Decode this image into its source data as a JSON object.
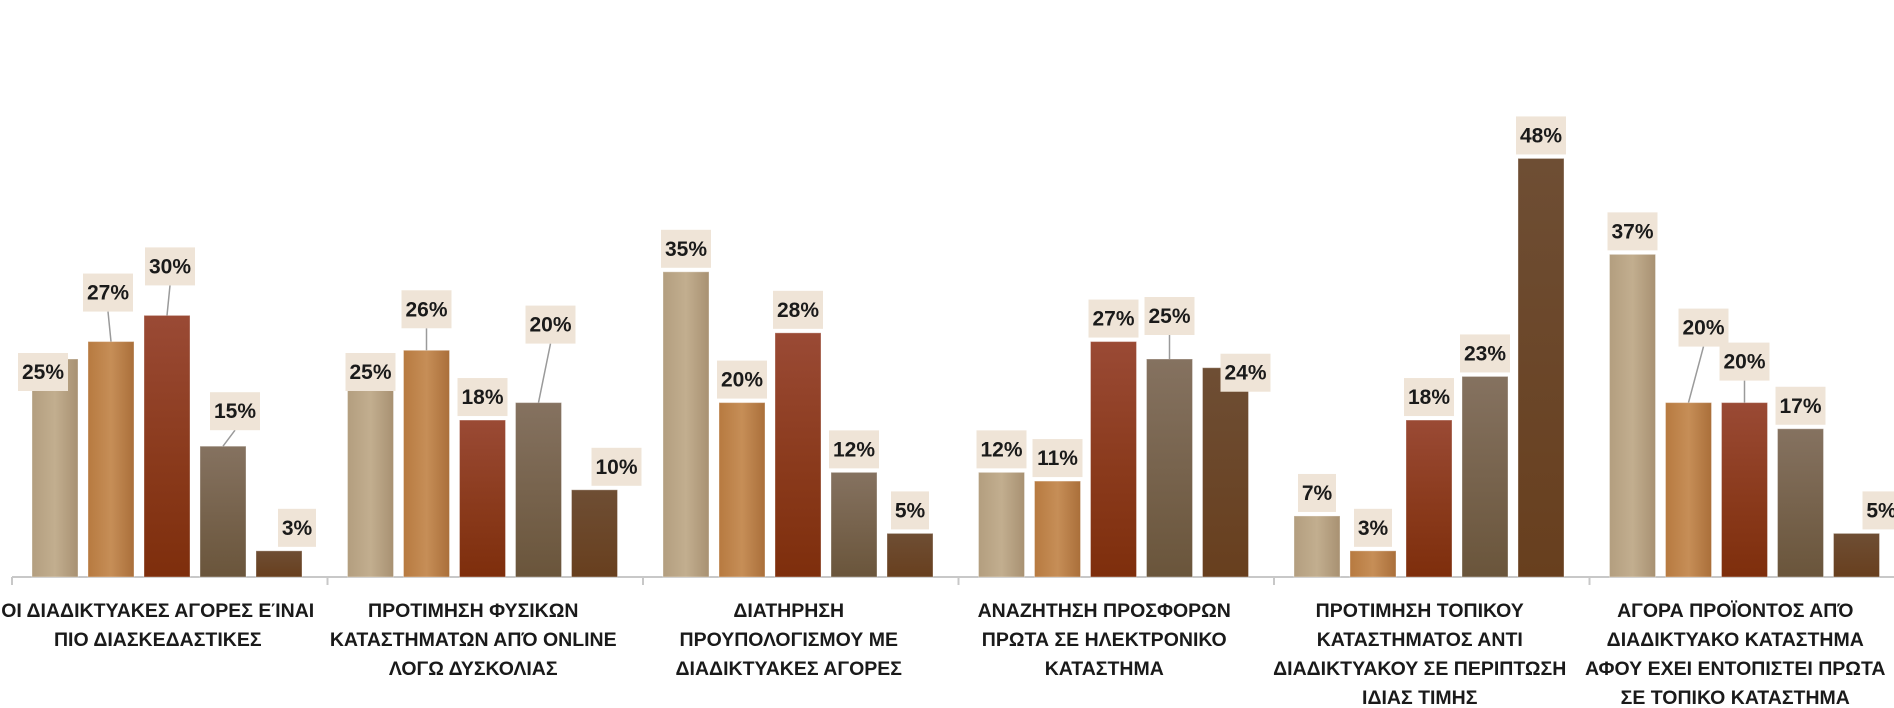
{
  "chart_data": {
    "type": "bar",
    "title": "",
    "xlabel": "",
    "ylabel": "",
    "legend": "none",
    "grid": false,
    "ylim": [
      0,
      55
    ],
    "categories": [
      [
        "ΟΙ ΔΙΑΔΙΚΤΥΑΚΕΣ ΑΓΟΡΕΣ ΕΊΝΑΙ",
        "ΠΙΟ ΔΙΑΣΚΕΔΑΣΤΙΚΕΣ"
      ],
      [
        "ΠΡΟΤΙΜΗΣΗ ΦΥΣΙΚΩΝ",
        "ΚΑΤΑΣΤΗΜΑΤΩΝ ΑΠΌ ONLINE",
        "ΛΟΓΩ ΔΥΣΚΟΛΙΑΣ"
      ],
      [
        "ΔΙΑΤΗΡΗΣΗ",
        "ΠΡΟΥΠΟΛΟΓΙΣΜΟΥ ΜΕ",
        "ΔΙΑΔΙΚΤΥΑΚΕΣ ΑΓΟΡΕΣ"
      ],
      [
        "ΑΝΑΖΗΤΗΣΗ ΠΡΟΣΦΟΡΩΝ",
        "ΠΡΩΤΑ ΣΕ ΗΛΕΚΤΡΟΝΙΚΟ",
        "ΚΑΤΑΣΤΗΜΑ"
      ],
      [
        "ΠΡΟΤΙΜΗΣΗ ΤΟΠΙΚΟΥ",
        "ΚΑΤΑΣΤΗΜΑΤΟΣ ΑΝΤΙ",
        "ΔΙΑΔΙΚΤΥΑΚΟΥ ΣΕ ΠΕΡΙΠΤΩΣΗ",
        "ΙΔΙΑΣ ΤΙΜΗΣ"
      ],
      [
        "ΑΓΟΡΑ ΠΡΟΪΟΝΤΟΣ ΑΠΌ",
        "ΔΙΑΔΙΚΤΥΑΚΟ ΚΑΤΑΣΤΗΜΑ",
        "ΑΦΟΥ ΕΧΕΙ ΕΝΤΟΠΙΣΤΕΙ ΠΡΩΤΑ",
        "ΣΕ ΤΟΠΙΚΟ ΚΑΤΑΣΤΗΜΑ"
      ]
    ],
    "series": [
      {
        "values": [
          25,
          25,
          35,
          12,
          7,
          37
        ],
        "color": "#B7A283"
      },
      {
        "values": [
          27,
          26,
          20,
          11,
          3,
          20
        ],
        "color": "#BC814A"
      },
      {
        "values": [
          30,
          18,
          28,
          27,
          18,
          20
        ],
        "color": "#8E3C22"
      },
      {
        "values": [
          15,
          20,
          12,
          25,
          23,
          17
        ],
        "color": "#7A6650"
      },
      {
        "values": [
          3,
          10,
          5,
          24,
          48,
          5
        ],
        "color": "#6A4628"
      }
    ],
    "value_suffix": "%",
    "label_box_color": "#EFE4D7",
    "axis_color": "#C8C8C8"
  }
}
